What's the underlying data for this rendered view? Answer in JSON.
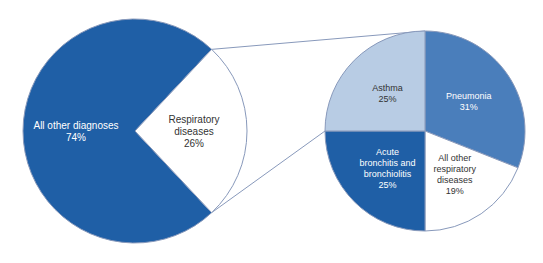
{
  "chart_data": [
    {
      "type": "pie",
      "categories": [
        "All other diagnoses",
        "Respiratory\ndiseases"
      ],
      "values": [
        74,
        26
      ],
      "value_labels": [
        "74%",
        "26%"
      ],
      "colors": [
        "#1F5FA6",
        "#FFFFFF"
      ],
      "data_labels": true
    },
    {
      "type": "pie",
      "categories": [
        "Pneumonia",
        "All other\nrespiratory\ndiseases",
        "Acute\nbronchitis and\nbronchiolitis",
        "Asthma"
      ],
      "values": [
        31,
        19,
        25,
        25
      ],
      "value_labels": [
        "31%",
        "19%",
        "25%",
        "25%"
      ],
      "colors": [
        "#4A7EBB",
        "#FFFFFF",
        "#1F5FA6",
        "#B8CCE4"
      ],
      "data_labels": true
    }
  ]
}
